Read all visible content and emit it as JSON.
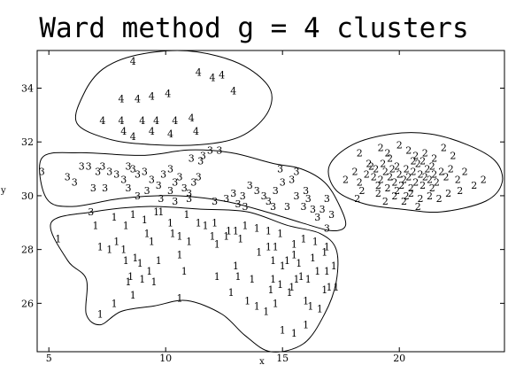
{
  "chart_data": {
    "type": "scatter",
    "title": "Ward method g = 4 clusters",
    "xlabel": "x",
    "ylabel": "y",
    "xlim": [
      4.5,
      24.5
    ],
    "ylim": [
      24.2,
      35.4
    ],
    "x_ticks": [
      5,
      10,
      15,
      20
    ],
    "y_ticks": [
      26,
      28,
      30,
      32,
      34
    ],
    "marker": "cluster number",
    "grid": false,
    "series": [
      {
        "name": "1",
        "points": [
          [
            5.4,
            28.4
          ],
          [
            7.0,
            28.9
          ],
          [
            7.2,
            28.1
          ],
          [
            7.6,
            28.0
          ],
          [
            7.9,
            28.3
          ],
          [
            8.2,
            28.0
          ],
          [
            8.3,
            27.6
          ],
          [
            8.7,
            27.7
          ],
          [
            8.9,
            27.5
          ],
          [
            9.3,
            27.2
          ],
          [
            7.8,
            29.2
          ],
          [
            8.3,
            28.9
          ],
          [
            8.6,
            29.3
          ],
          [
            9.1,
            29.1
          ],
          [
            9.6,
            29.4
          ],
          [
            10.2,
            29.0
          ],
          [
            10.9,
            29.3
          ],
          [
            11.4,
            29.0
          ],
          [
            11.7,
            28.9
          ],
          [
            12.1,
            29.0
          ],
          [
            12.6,
            28.5
          ],
          [
            13.0,
            28.7
          ],
          [
            13.4,
            28.9
          ],
          [
            13.9,
            28.8
          ],
          [
            14.4,
            28.7
          ],
          [
            14.9,
            28.6
          ],
          [
            15.5,
            28.2
          ],
          [
            15.9,
            28.4
          ],
          [
            16.4,
            28.3
          ],
          [
            16.9,
            28.1
          ],
          [
            8.5,
            27.0
          ],
          [
            9.0,
            26.9
          ],
          [
            9.5,
            26.8
          ],
          [
            10.6,
            28.5
          ],
          [
            10.6,
            27.8
          ],
          [
            10.8,
            27.2
          ],
          [
            10.6,
            26.2
          ],
          [
            12.2,
            28.2
          ],
          [
            13.0,
            27.4
          ],
          [
            13.1,
            27.0
          ],
          [
            14.0,
            27.9
          ],
          [
            14.4,
            28.1
          ],
          [
            14.6,
            27.6
          ],
          [
            15.0,
            27.4
          ],
          [
            15.2,
            27.6
          ],
          [
            15.5,
            27.8
          ],
          [
            15.7,
            27.5
          ],
          [
            15.8,
            27.0
          ],
          [
            16.1,
            26.9
          ],
          [
            16.3,
            27.7
          ],
          [
            16.5,
            27.2
          ],
          [
            16.8,
            27.9
          ],
          [
            14.5,
            26.5
          ],
          [
            14.7,
            26.0
          ],
          [
            14.9,
            26.7
          ],
          [
            15.3,
            26.4
          ],
          [
            15.6,
            26.9
          ],
          [
            16.0,
            26.1
          ],
          [
            16.2,
            25.9
          ],
          [
            16.8,
            26.5
          ],
          [
            12.8,
            26.4
          ],
          [
            13.5,
            26.1
          ],
          [
            13.9,
            25.9
          ],
          [
            14.3,
            25.7
          ],
          [
            16.0,
            25.2
          ],
          [
            17.0,
            26.6
          ],
          [
            17.3,
            26.6
          ],
          [
            8.4,
            26.8
          ],
          [
            8.6,
            26.3
          ],
          [
            7.8,
            26.0
          ],
          [
            7.2,
            25.6
          ],
          [
            14.6,
            26.9
          ],
          [
            13.7,
            26.9
          ],
          [
            9.8,
            29.4
          ],
          [
            9.2,
            28.6
          ],
          [
            10.3,
            28.6
          ],
          [
            9.4,
            28.3
          ],
          [
            11.0,
            28.3
          ],
          [
            12.2,
            27.0
          ],
          [
            15.0,
            25.0
          ],
          [
            15.5,
            24.9
          ],
          [
            17.2,
            27.4
          ],
          [
            15.4,
            26.6
          ],
          [
            16.6,
            25.8
          ],
          [
            16.9,
            27.2
          ],
          [
            9.7,
            27.6
          ],
          [
            12.0,
            28.5
          ],
          [
            12.7,
            28.7
          ],
          [
            13.2,
            28.4
          ],
          [
            14.7,
            28.1
          ]
        ]
      },
      {
        "name": "2",
        "points": [
          [
            17.7,
            30.6
          ],
          [
            18.1,
            30.9
          ],
          [
            18.3,
            30.5
          ],
          [
            18.4,
            30.2
          ],
          [
            18.6,
            30.8
          ],
          [
            18.8,
            31.1
          ],
          [
            18.9,
            30.7
          ],
          [
            19.0,
            31.0
          ],
          [
            19.1,
            30.4
          ],
          [
            19.2,
            30.6
          ],
          [
            19.3,
            31.2
          ],
          [
            19.4,
            30.9
          ],
          [
            19.5,
            30.3
          ],
          [
            19.6,
            30.7
          ],
          [
            19.7,
            31.0
          ],
          [
            19.8,
            30.5
          ],
          [
            19.9,
            31.1
          ],
          [
            20.0,
            30.8
          ],
          [
            20.1,
            30.4
          ],
          [
            20.2,
            30.6
          ],
          [
            20.3,
            31.0
          ],
          [
            20.4,
            30.7
          ],
          [
            20.5,
            30.3
          ],
          [
            20.6,
            30.9
          ],
          [
            20.7,
            30.5
          ],
          [
            20.8,
            31.2
          ],
          [
            20.9,
            30.8
          ],
          [
            21.0,
            30.4
          ],
          [
            21.1,
            30.7
          ],
          [
            21.2,
            31.0
          ],
          [
            21.3,
            30.6
          ],
          [
            21.4,
            30.3
          ],
          [
            21.5,
            30.8
          ],
          [
            21.6,
            30.5
          ],
          [
            21.8,
            30.9
          ],
          [
            22.0,
            30.7
          ],
          [
            22.2,
            31.0
          ],
          [
            22.5,
            30.6
          ],
          [
            22.8,
            30.9
          ],
          [
            23.2,
            30.4
          ],
          [
            23.6,
            30.6
          ],
          [
            22.6,
            30.2
          ],
          [
            19.2,
            31.8
          ],
          [
            19.5,
            31.6
          ],
          [
            20.0,
            31.9
          ],
          [
            20.4,
            31.7
          ],
          [
            20.7,
            31.5
          ],
          [
            21.1,
            31.6
          ],
          [
            21.5,
            31.4
          ],
          [
            21.9,
            31.8
          ],
          [
            22.3,
            31.5
          ],
          [
            19.1,
            30.1
          ],
          [
            19.4,
            29.8
          ],
          [
            19.8,
            30.0
          ],
          [
            20.2,
            29.8
          ],
          [
            20.5,
            30.1
          ],
          [
            20.9,
            29.9
          ],
          [
            21.3,
            30.0
          ],
          [
            21.7,
            29.9
          ],
          [
            22.1,
            30.1
          ],
          [
            18.3,
            31.6
          ],
          [
            18.7,
            31.2
          ],
          [
            19.9,
            30.2
          ],
          [
            20.6,
            31.3
          ],
          [
            21.0,
            31.3
          ],
          [
            21.4,
            31.1
          ],
          [
            19.6,
            31.4
          ],
          [
            20.3,
            30.0
          ],
          [
            20.8,
            29.6
          ],
          [
            18.2,
            29.9
          ]
        ]
      },
      {
        "name": "3",
        "points": [
          [
            4.7,
            30.9
          ],
          [
            5.8,
            30.7
          ],
          [
            6.1,
            30.5
          ],
          [
            6.4,
            31.1
          ],
          [
            6.7,
            31.1
          ],
          [
            6.9,
            30.3
          ],
          [
            7.1,
            30.9
          ],
          [
            7.4,
            30.3
          ],
          [
            7.6,
            30.9
          ],
          [
            7.9,
            30.8
          ],
          [
            8.2,
            30.6
          ],
          [
            8.4,
            30.3
          ],
          [
            8.6,
            31.0
          ],
          [
            8.8,
            30.0
          ],
          [
            9.1,
            30.9
          ],
          [
            9.2,
            30.2
          ],
          [
            9.4,
            30.6
          ],
          [
            9.7,
            30.4
          ],
          [
            9.9,
            30.8
          ],
          [
            10.2,
            30.2
          ],
          [
            10.4,
            30.5
          ],
          [
            10.6,
            30.7
          ],
          [
            10.8,
            30.3
          ],
          [
            11.0,
            30.1
          ],
          [
            11.2,
            30.5
          ],
          [
            11.1,
            31.4
          ],
          [
            11.5,
            31.3
          ],
          [
            11.9,
            31.7
          ],
          [
            12.1,
            29.8
          ],
          [
            12.6,
            29.9
          ],
          [
            12.9,
            30.1
          ],
          [
            13.1,
            29.7
          ],
          [
            13.3,
            30.0
          ],
          [
            13.6,
            30.4
          ],
          [
            13.9,
            30.2
          ],
          [
            14.2,
            30.0
          ],
          [
            14.4,
            29.8
          ],
          [
            14.7,
            30.2
          ],
          [
            15.0,
            30.5
          ],
          [
            15.2,
            29.6
          ],
          [
            15.4,
            30.6
          ],
          [
            15.6,
            30.0
          ],
          [
            15.9,
            29.6
          ],
          [
            16.1,
            29.9
          ],
          [
            16.3,
            29.5
          ],
          [
            16.5,
            29.2
          ],
          [
            16.7,
            29.5
          ],
          [
            16.9,
            28.8
          ],
          [
            17.1,
            29.3
          ],
          [
            6.8,
            29.4
          ],
          [
            10.4,
            29.8
          ],
          [
            11.0,
            29.9
          ],
          [
            9.8,
            29.9
          ],
          [
            10.2,
            31.0
          ],
          [
            11.6,
            31.5
          ],
          [
            8.8,
            30.8
          ],
          [
            14.9,
            31.0
          ],
          [
            15.6,
            30.9
          ],
          [
            12.3,
            31.7
          ],
          [
            7.3,
            31.1
          ],
          [
            8.4,
            31.1
          ],
          [
            11.4,
            30.7
          ],
          [
            13.4,
            29.6
          ],
          [
            14.6,
            29.6
          ],
          [
            16.0,
            30.2
          ],
          [
            16.9,
            29.9
          ]
        ]
      },
      {
        "name": "4",
        "points": [
          [
            8.6,
            35.0
          ],
          [
            11.4,
            34.6
          ],
          [
            12.0,
            34.4
          ],
          [
            12.4,
            34.5
          ],
          [
            12.9,
            33.9
          ],
          [
            8.1,
            33.6
          ],
          [
            8.8,
            33.6
          ],
          [
            9.4,
            33.7
          ],
          [
            10.1,
            33.8
          ],
          [
            7.3,
            32.8
          ],
          [
            8.1,
            32.8
          ],
          [
            9.0,
            32.8
          ],
          [
            9.6,
            32.8
          ],
          [
            10.4,
            32.8
          ],
          [
            11.1,
            32.9
          ],
          [
            8.2,
            32.4
          ],
          [
            8.6,
            32.2
          ],
          [
            9.4,
            32.4
          ],
          [
            10.2,
            32.3
          ],
          [
            11.3,
            32.4
          ]
        ]
      }
    ],
    "cluster_boundaries": [
      {
        "name": "4",
        "outline": [
          [
            6.2,
            32.7
          ],
          [
            6.5,
            33.8
          ],
          [
            7.3,
            34.7
          ],
          [
            8.6,
            35.2
          ],
          [
            10.5,
            35.4
          ],
          [
            12.2,
            35.2
          ],
          [
            13.6,
            34.7
          ],
          [
            14.5,
            33.9
          ],
          [
            14.3,
            33.0
          ],
          [
            13.2,
            32.2
          ],
          [
            11.5,
            31.9
          ],
          [
            9.4,
            31.9
          ],
          [
            7.6,
            32.1
          ]
        ]
      },
      {
        "name": "3",
        "outline": [
          [
            4.7,
            31.4
          ],
          [
            6.3,
            31.6
          ],
          [
            9.0,
            31.5
          ],
          [
            11.0,
            31.7
          ],
          [
            12.8,
            31.6
          ],
          [
            14.6,
            31.2
          ],
          [
            15.8,
            31.0
          ],
          [
            16.8,
            30.5
          ],
          [
            17.4,
            29.7
          ],
          [
            17.7,
            28.9
          ],
          [
            17.1,
            28.7
          ],
          [
            15.8,
            29.0
          ],
          [
            14.3,
            29.4
          ],
          [
            12.5,
            29.8
          ],
          [
            10.4,
            30.0
          ],
          [
            8.1,
            29.9
          ],
          [
            6.0,
            29.6
          ],
          [
            4.9,
            29.9
          ]
        ]
      },
      {
        "name": "2",
        "outline": [
          [
            17.0,
            31.1
          ],
          [
            18.0,
            31.9
          ],
          [
            19.7,
            32.3
          ],
          [
            21.3,
            32.3
          ],
          [
            22.9,
            31.9
          ],
          [
            24.1,
            31.3
          ],
          [
            24.4,
            30.5
          ],
          [
            23.7,
            29.8
          ],
          [
            21.8,
            29.4
          ],
          [
            20.1,
            29.5
          ],
          [
            18.5,
            29.7
          ],
          [
            17.3,
            30.2
          ]
        ]
      },
      {
        "name": "1",
        "outline": [
          [
            5.1,
            29.0
          ],
          [
            6.9,
            29.4
          ],
          [
            9.2,
            29.6
          ],
          [
            11.5,
            29.5
          ],
          [
            13.5,
            29.4
          ],
          [
            15.2,
            28.9
          ],
          [
            16.6,
            28.6
          ],
          [
            17.3,
            28.0
          ],
          [
            17.3,
            26.8
          ],
          [
            16.8,
            25.6
          ],
          [
            15.9,
            24.5
          ],
          [
            14.5,
            24.2
          ],
          [
            13.4,
            24.8
          ],
          [
            12.4,
            25.6
          ],
          [
            10.9,
            26.1
          ],
          [
            9.5,
            25.9
          ],
          [
            8.1,
            25.7
          ],
          [
            7.2,
            25.2
          ],
          [
            6.6,
            25.6
          ],
          [
            6.6,
            26.9
          ],
          [
            5.8,
            27.6
          ]
        ]
      }
    ]
  }
}
